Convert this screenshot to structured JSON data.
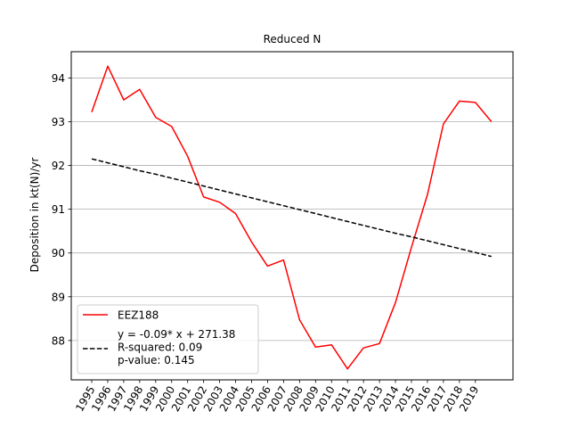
{
  "chart_data": {
    "type": "line",
    "title": "Reduced N",
    "xlabel": "",
    "ylabel": "Deposition in kt(N)/yr",
    "x": [
      "1995",
      "1996",
      "1997",
      "1998",
      "1999",
      "2000",
      "2001",
      "2002",
      "2003",
      "2004",
      "2005",
      "2006",
      "2007",
      "2008",
      "2009",
      "2010",
      "2011",
      "2012",
      "2013",
      "2014",
      "2015",
      "2016",
      "2017",
      "2018",
      "2019",
      "2020"
    ],
    "x_tick_labels": [
      "1995",
      "1996",
      "1997",
      "1998",
      "1999",
      "2000",
      "2001",
      "2002",
      "2003",
      "2004",
      "2005",
      "2006",
      "2007",
      "2008",
      "2009",
      "2010",
      "2011",
      "2012",
      "2013",
      "2014",
      "2015",
      "2016",
      "2017",
      "2018",
      "2019"
    ],
    "ylim": [
      87.1,
      94.6
    ],
    "y_ticks": [
      88,
      89,
      90,
      91,
      92,
      93,
      94
    ],
    "grid": "horizontal",
    "legend_position": "lower-left",
    "series": [
      {
        "name": "EEZ188",
        "color": "#ff0000",
        "style": "solid",
        "values": [
          93.22,
          94.27,
          93.5,
          93.74,
          93.1,
          92.89,
          92.21,
          91.28,
          91.16,
          90.9,
          90.25,
          89.7,
          89.84,
          88.47,
          87.85,
          87.9,
          87.35,
          87.83,
          87.93,
          88.87,
          90.13,
          91.33,
          92.95,
          93.47,
          93.44,
          93.0
        ]
      },
      {
        "name": "y = -0.09* x + 271.38\nR-squared: 0.09\np-value: 0.145",
        "color": "#000000",
        "style": "dashed",
        "values": [
          92.15,
          92.06,
          91.97,
          91.88,
          91.8,
          91.71,
          91.62,
          91.53,
          91.44,
          91.35,
          91.26,
          91.17,
          91.08,
          90.99,
          90.9,
          90.81,
          90.72,
          90.63,
          90.54,
          90.45,
          90.37,
          90.28,
          90.19,
          90.1,
          90.01,
          89.92
        ]
      }
    ]
  }
}
